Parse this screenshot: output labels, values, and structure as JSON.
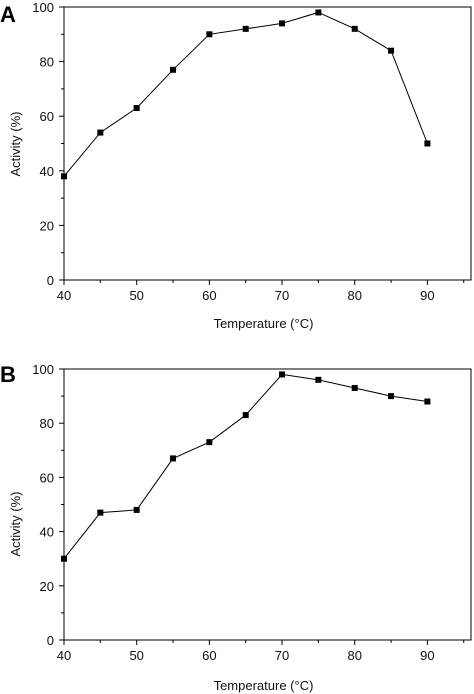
{
  "chart_data": [
    {
      "type": "line",
      "panel_label": "A",
      "xlabel": "Temperature (°C)",
      "ylabel": "Activity (%)",
      "xlim": [
        40,
        96
      ],
      "ylim": [
        0,
        100
      ],
      "xticks": [
        40,
        50,
        60,
        70,
        80,
        90
      ],
      "yticks": [
        0,
        20,
        40,
        60,
        80,
        100
      ],
      "grid": false,
      "marker": "square",
      "color": "#000000",
      "x": [
        40,
        45,
        50,
        55,
        60,
        65,
        70,
        75,
        80,
        85,
        90
      ],
      "y": [
        38,
        54,
        63,
        77,
        90,
        92,
        94,
        98,
        92,
        84,
        50
      ]
    },
    {
      "type": "line",
      "panel_label": "B",
      "xlabel": "Temperature (°C)",
      "ylabel": "Activity (%)",
      "xlim": [
        40,
        96
      ],
      "ylim": [
        0,
        100
      ],
      "xticks": [
        40,
        50,
        60,
        70,
        80,
        90
      ],
      "yticks": [
        0,
        20,
        40,
        60,
        80,
        100
      ],
      "grid": false,
      "marker": "square",
      "color": "#000000",
      "x": [
        40,
        45,
        50,
        55,
        60,
        65,
        70,
        75,
        80,
        85,
        90
      ],
      "y": [
        30,
        47,
        48,
        67,
        73,
        83,
        98,
        96,
        93,
        90,
        88
      ]
    }
  ]
}
